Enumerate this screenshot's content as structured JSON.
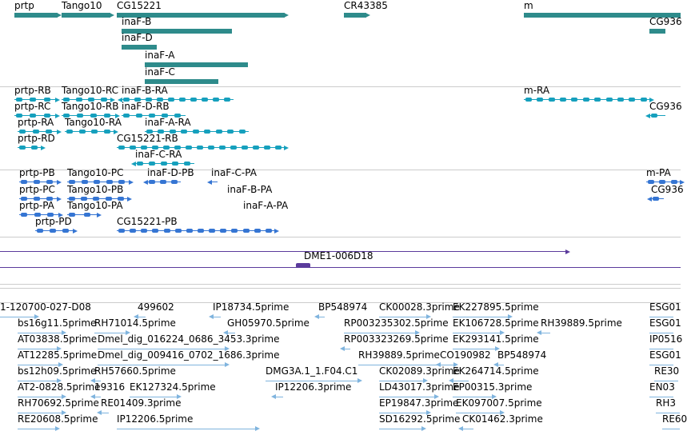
{
  "colors": {
    "gene": "#2e8b8b",
    "transcript": "#16a0bd",
    "protein": "#3575d3",
    "clone": "#5b3b9c",
    "est": "#7fb4de",
    "separator": "#cccccc"
  },
  "tracks": {
    "genes": {
      "features": [
        {
          "label": "prtp"
        },
        {
          "label": "Tango10"
        },
        {
          "label": "CG15221"
        },
        {
          "label": "inaF-B"
        },
        {
          "label": "inaF-D"
        },
        {
          "label": "inaF-A"
        },
        {
          "label": "inaF-C"
        },
        {
          "label": "CR43385"
        },
        {
          "label": "m"
        },
        {
          "label": "CG936"
        }
      ]
    },
    "transcripts": {
      "features": [
        {
          "label": "prtp-RB"
        },
        {
          "label": "Tango10-RC"
        },
        {
          "label": "inaF-B-RA"
        },
        {
          "label": "m-RA"
        },
        {
          "label": "prtp-RC"
        },
        {
          "label": "Tango10-RB"
        },
        {
          "label": "inaF-D-RB"
        },
        {
          "label": "CG936"
        },
        {
          "label": "prtp-RA"
        },
        {
          "label": "Tango10-RA"
        },
        {
          "label": "inaF-A-RA"
        },
        {
          "label": "prtp-RD"
        },
        {
          "label": "CG15221-RB"
        },
        {
          "label": "inaF-C-RA"
        }
      ]
    },
    "proteins": {
      "features": [
        {
          "label": "prtp-PB"
        },
        {
          "label": "Tango10-PC"
        },
        {
          "label": "inaF-D-PB"
        },
        {
          "label": "inaF-C-PA"
        },
        {
          "label": "m-PA"
        },
        {
          "label": "prtp-PC"
        },
        {
          "label": "Tango10-PB"
        },
        {
          "label": "inaF-B-PA"
        },
        {
          "label": "CG936"
        },
        {
          "label": "prtp-PA"
        },
        {
          "label": "Tango10-PA"
        },
        {
          "label": "inaF-A-PA"
        },
        {
          "label": "prtp-PD"
        },
        {
          "label": "CG15221-PB"
        }
      ]
    },
    "clones": {
      "features": [
        {
          "label": ""
        },
        {
          "label": "DME1-006D18"
        }
      ]
    },
    "ests": {
      "features": [
        {
          "label": "1-120700-027-D08"
        },
        {
          "label": "499602"
        },
        {
          "label": "IP18734.5prime"
        },
        {
          "label": "BP548974"
        },
        {
          "label": "CK00028.3prime"
        },
        {
          "label": "EK227895.5prime"
        },
        {
          "label": "ESG01"
        },
        {
          "label": "bs16g11.5prime"
        },
        {
          "label": "RH71014.5prime"
        },
        {
          "label": "GH05970.5prime"
        },
        {
          "label": "RP003235302.5prime"
        },
        {
          "label": "EK106728.5prime"
        },
        {
          "label": "RH39889.5prime"
        },
        {
          "label": "ESG01"
        },
        {
          "label": "AT03838.5prime"
        },
        {
          "label": "Dmel_dig_016224_0686_3453.3prime"
        },
        {
          "label": "RP003323269.5prime"
        },
        {
          "label": "EK293141.5prime"
        },
        {
          "label": "IP0516"
        },
        {
          "label": "AT12285.5prime"
        },
        {
          "label": "Dmel_dig_009416_0702_1686.3prime"
        },
        {
          "label": "RH39889.5prime"
        },
        {
          "label": "CO190982"
        },
        {
          "label": "BP548974"
        },
        {
          "label": "ESG01"
        },
        {
          "label": "bs12h09.5prime"
        },
        {
          "label": "RH57660.5prime"
        },
        {
          "label": "DMG3A.1_1.F04.C1"
        },
        {
          "label": "CK02089.3prime"
        },
        {
          "label": "EK264714.5prime"
        },
        {
          "label": "RE30"
        },
        {
          "label": "AT2-0828.5prime"
        },
        {
          "label": "19316"
        },
        {
          "label": "EK127324.5prime"
        },
        {
          "label": "IP12206.3prime"
        },
        {
          "label": "LD43017.3prime"
        },
        {
          "label": "EP00315.3prime"
        },
        {
          "label": "EN03"
        },
        {
          "label": "RH70692.5prime"
        },
        {
          "label": "RE01409.3prime"
        },
        {
          "label": "EP19847.3prime"
        },
        {
          "label": "EK097007.5prime"
        },
        {
          "label": "RH3"
        },
        {
          "label": "RE20608.5prime"
        },
        {
          "label": "IP12206.5prime"
        },
        {
          "label": "SD16292.5prime"
        },
        {
          "label": "CK01462.3prime"
        },
        {
          "label": "RE60"
        }
      ]
    }
  }
}
